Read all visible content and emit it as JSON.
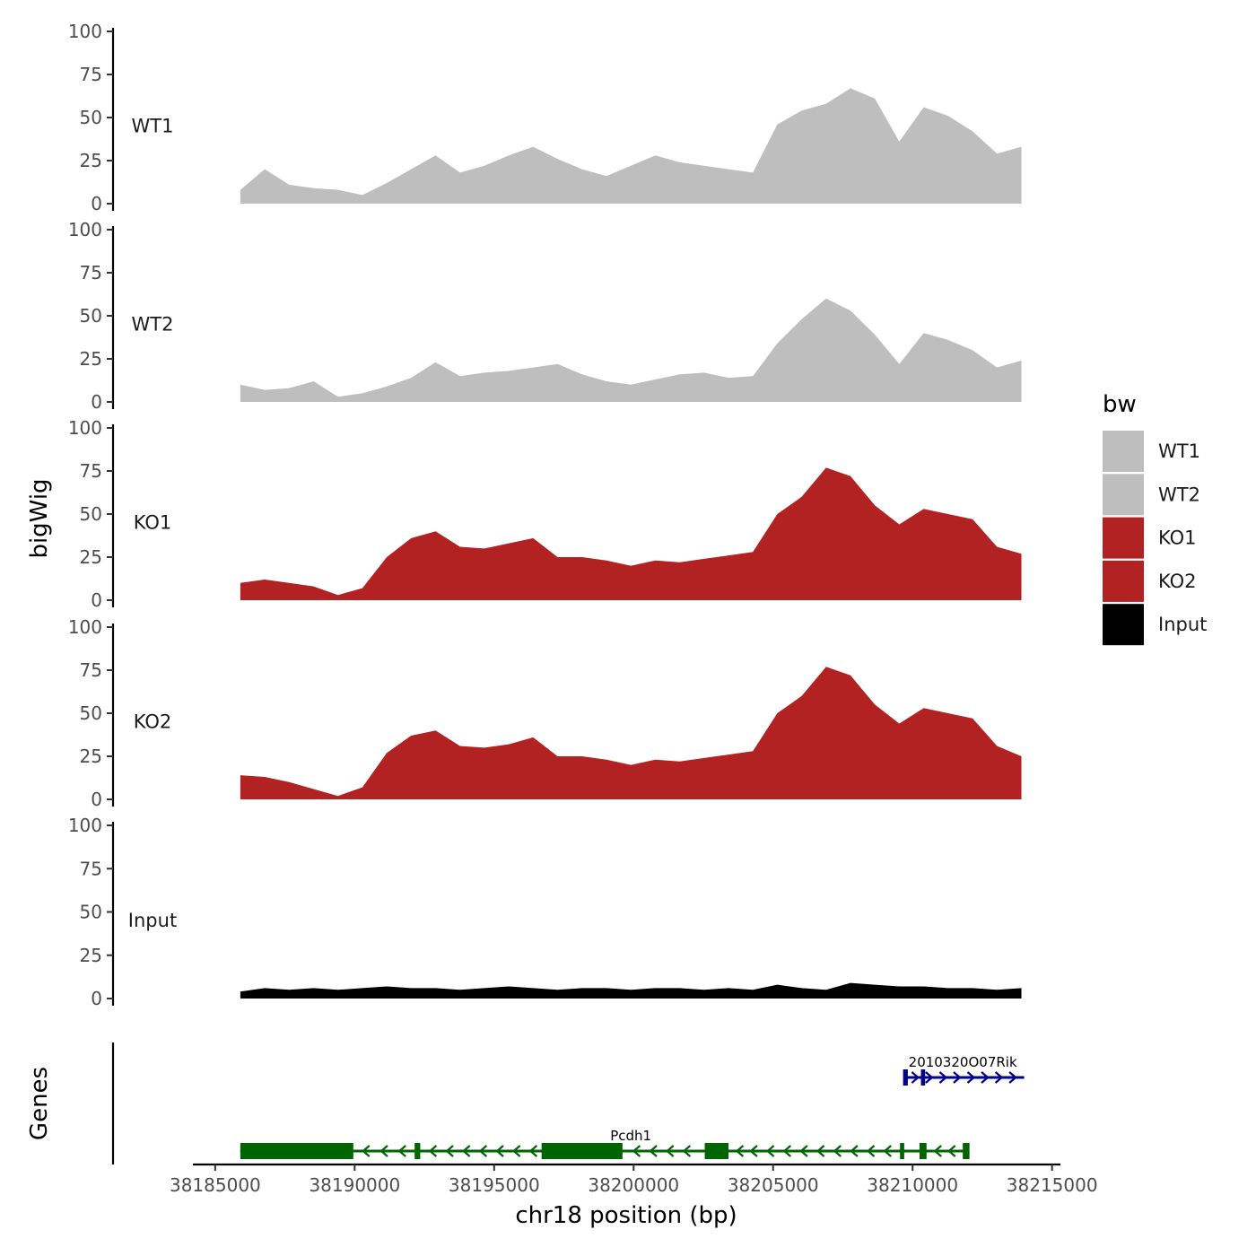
{
  "chart_data": {
    "type": "area",
    "xlabel": "chr18 position (bp)",
    "ylabel": "bigWig",
    "genes_label": "Genes",
    "xlim": [
      38184200,
      38215300
    ],
    "ylim": [
      0,
      100
    ],
    "x_ticks": [
      38185000,
      38190000,
      38195000,
      38200000,
      38205000,
      38210000,
      38215000
    ],
    "x_tick_labels": [
      "38185000",
      "38190000",
      "38195000",
      "38200000",
      "38205000",
      "38210000",
      "38215000"
    ],
    "y_ticks": [
      0,
      25,
      50,
      75,
      100
    ],
    "y_tick_labels": [
      "0",
      "25",
      "50",
      "75",
      "100"
    ],
    "legend": {
      "title": "bw",
      "items": [
        {
          "label": "WT1",
          "color": "#bebebe"
        },
        {
          "label": "WT2",
          "color": "#bebebe"
        },
        {
          "label": "KO1",
          "color": "#b22222"
        },
        {
          "label": "KO2",
          "color": "#b22222"
        },
        {
          "label": "Input",
          "color": "#000000"
        }
      ]
    },
    "x": [
      38185900,
      38186775,
      38187650,
      38188525,
      38189400,
      38190275,
      38191150,
      38192025,
      38192900,
      38193775,
      38194650,
      38195525,
      38196400,
      38197275,
      38198150,
      38199025,
      38199900,
      38200775,
      38201650,
      38202525,
      38203400,
      38204275,
      38205150,
      38206025,
      38206900,
      38207775,
      38208650,
      38209525,
      38210400,
      38211275,
      38212150,
      38213025,
      38213900
    ],
    "series": [
      {
        "name": "WT1",
        "color": "#bebebe",
        "values": [
          8,
          20,
          11,
          9,
          8,
          5,
          12,
          20,
          28,
          18,
          22,
          28,
          33,
          26,
          20,
          16,
          22,
          28,
          24,
          22,
          20,
          18,
          46,
          54,
          58,
          67,
          61,
          36,
          56,
          51,
          42,
          29,
          33
        ]
      },
      {
        "name": "WT2",
        "color": "#bebebe",
        "values": [
          10,
          7,
          8,
          12,
          3,
          5,
          9,
          14,
          23,
          15,
          17,
          18,
          20,
          22,
          16,
          12,
          10,
          13,
          16,
          17,
          14,
          15,
          34,
          48,
          60,
          53,
          39,
          22,
          40,
          36,
          30,
          20,
          24
        ]
      },
      {
        "name": "KO1",
        "color": "#b22222",
        "values": [
          10,
          12,
          10,
          8,
          3,
          7,
          25,
          36,
          40,
          31,
          30,
          33,
          36,
          25,
          25,
          23,
          20,
          23,
          22,
          24,
          26,
          28,
          50,
          60,
          77,
          72,
          55,
          44,
          53,
          50,
          47,
          31,
          27
        ]
      },
      {
        "name": "KO2",
        "color": "#b22222",
        "values": [
          14,
          13,
          10,
          6,
          2,
          7,
          27,
          37,
          40,
          31,
          30,
          32,
          36,
          25,
          25,
          23,
          20,
          23,
          22,
          24,
          26,
          28,
          50,
          60,
          77,
          72,
          55,
          44,
          53,
          50,
          47,
          31,
          25
        ]
      },
      {
        "name": "Input",
        "color": "#000000",
        "values": [
          4,
          6,
          5,
          6,
          5,
          6,
          7,
          6,
          6,
          5,
          6,
          7,
          6,
          5,
          6,
          6,
          5,
          6,
          6,
          5,
          6,
          5,
          8,
          6,
          5,
          9,
          8,
          7,
          7,
          6,
          6,
          5,
          6
        ]
      }
    ],
    "genes": [
      {
        "name": "2010320O07Rik",
        "color": "#00008b",
        "strand": "+",
        "start": 38209700,
        "end": 38214000,
        "label_x": 38211800,
        "exons": [
          [
            38209700,
            38209820
          ],
          [
            38210300,
            38210450
          ]
        ],
        "arrows": [
          38210100,
          38210600,
          38211100,
          38211600,
          38212100,
          38212600,
          38213100,
          38213600
        ]
      },
      {
        "name": "Pcdh1",
        "color": "#006400",
        "strand": "-",
        "start": 38185900,
        "end": 38212000,
        "label_x": 38199900,
        "exons": [
          [
            38185900,
            38189950
          ],
          [
            38192150,
            38192350
          ],
          [
            38196700,
            38199600
          ],
          [
            38202550,
            38203400
          ],
          [
            38209550,
            38209700
          ],
          [
            38210250,
            38210500
          ],
          [
            38211800,
            38212000
          ]
        ],
        "arrows": [
          38190400,
          38191050,
          38191700,
          38192800,
          38193400,
          38194000,
          38194600,
          38195200,
          38195800,
          38196400,
          38200100,
          38200700,
          38201300,
          38201900,
          38203800,
          38204300,
          38204900,
          38205500,
          38206100,
          38206700,
          38207300,
          38207900,
          38208500,
          38209100,
          38210900,
          38211400
        ]
      }
    ]
  }
}
